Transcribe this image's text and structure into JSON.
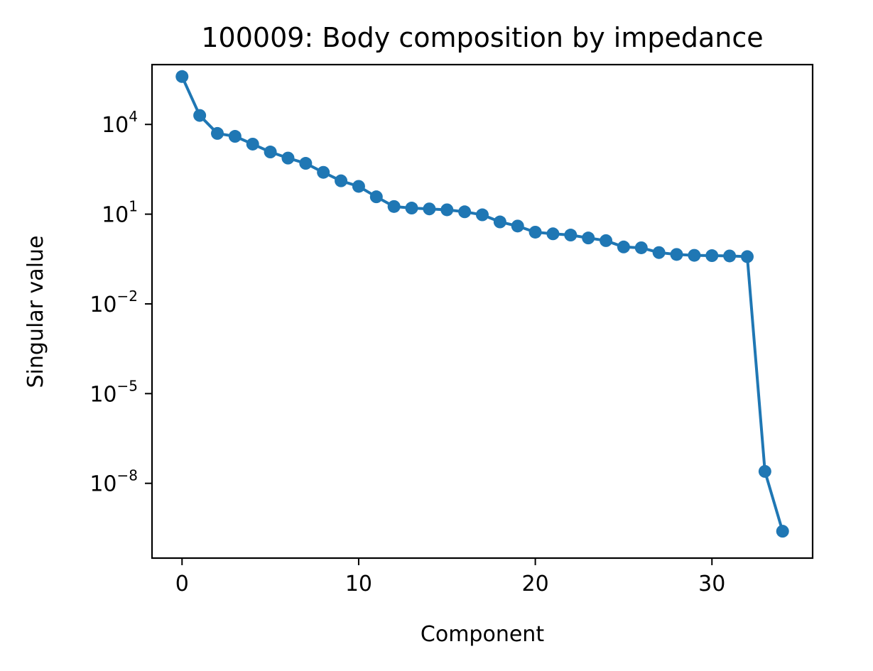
{
  "chart_data": {
    "type": "line",
    "title": "100009: Body composition by impedance",
    "xlabel": "Component",
    "ylabel": "Singular value",
    "yscale": "log",
    "xlim": [
      -1.7,
      35.7
    ],
    "ylim_log10": [
      -10.5,
      6.0
    ],
    "xticks": [
      0,
      10,
      20,
      30
    ],
    "yticks": [
      {
        "base": "10",
        "exp": "4",
        "log10": 4
      },
      {
        "base": "10",
        "exp": "1",
        "log10": 1
      },
      {
        "base": "10",
        "exp": "−2",
        "log10": -2
      },
      {
        "base": "10",
        "exp": "−5",
        "log10": -5
      },
      {
        "base": "10",
        "exp": "−8",
        "log10": -8
      }
    ],
    "grid": false,
    "series": [
      {
        "color": "#1f77b4",
        "marker": "circle",
        "x": [
          0,
          1,
          2,
          3,
          4,
          5,
          6,
          7,
          8,
          9,
          10,
          11,
          12,
          13,
          14,
          15,
          16,
          17,
          18,
          19,
          20,
          21,
          22,
          23,
          24,
          25,
          26,
          27,
          28,
          29,
          30,
          31,
          32,
          33,
          34
        ],
        "y": [
          400000,
          20000,
          5000,
          4000,
          2200,
          1200,
          750,
          500,
          250,
          130,
          85,
          38,
          18,
          16,
          15,
          14,
          12,
          9.5,
          5.5,
          4,
          2.5,
          2.2,
          2,
          1.6,
          1.3,
          0.8,
          0.75,
          0.52,
          0.45,
          0.42,
          0.41,
          0.4,
          0.38,
          2.5e-08,
          2.5e-10
        ]
      }
    ]
  }
}
